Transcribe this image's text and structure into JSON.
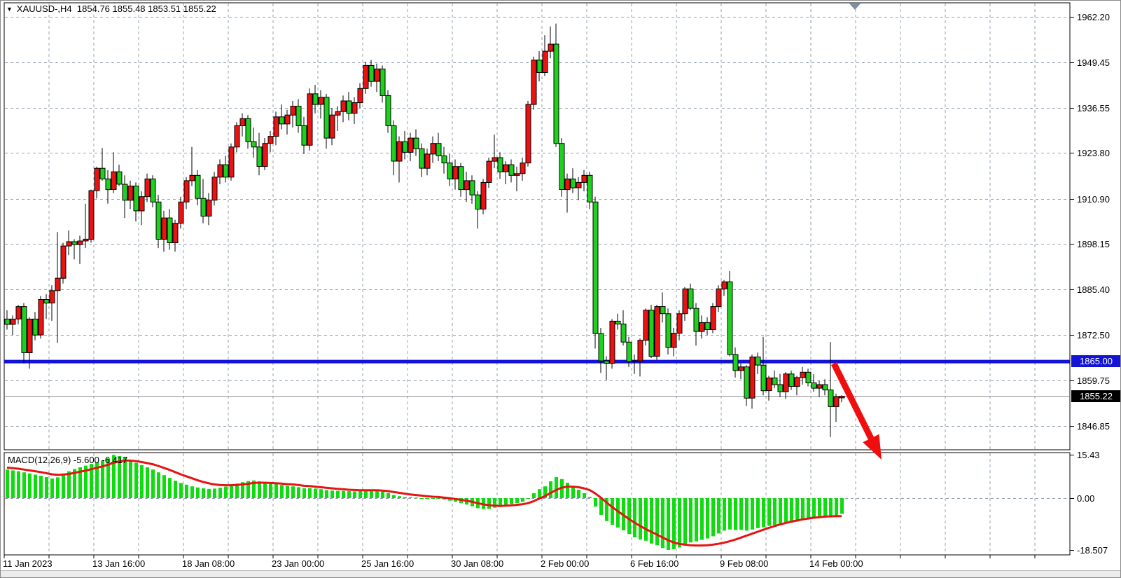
{
  "window": {
    "symbol_timeframe": "XAUUSD-,H4",
    "ohlc_readout": {
      "open": "1854.76",
      "high": "1855.48",
      "low": "1853.51",
      "close": "1855.22"
    }
  },
  "chart_data": {
    "type": "candlestick",
    "title": "XAUUSD-,H4",
    "symbol": "XAUUSD-",
    "timeframe": "H4",
    "legend_position": "none",
    "grid": true,
    "price_axis": {
      "ticks": [
        "1962.20",
        "1949.45",
        "1936.55",
        "1923.80",
        "1910.90",
        "1898.15",
        "1885.40",
        "1872.50",
        "1859.75",
        "1846.85"
      ],
      "ylim": [
        1843.0,
        1966.0
      ]
    },
    "time_axis": {
      "labels": [
        "11 Jan 2023",
        "13 Jan 16:00",
        "18 Jan 08:00",
        "23 Jan 00:00",
        "25 Jan 16:00",
        "30 Jan 08:00",
        "2 Feb 00:00",
        "6 Feb 16:00",
        "9 Feb 08:00",
        "14 Feb 00:00"
      ]
    },
    "bull_color_note": "bullish candles are red, bearish candles are green (inverted scheme)",
    "candles_ohlc": [
      [
        1877.0,
        1879.5,
        1874.0,
        1875.5
      ],
      [
        1875.5,
        1878.0,
        1872.5,
        1877.0
      ],
      [
        1877.0,
        1881.0,
        1875.5,
        1880.5
      ],
      [
        1880.5,
        1881.5,
        1864.5,
        1867.5
      ],
      [
        1867.5,
        1877.5,
        1863.0,
        1877.0
      ],
      [
        1877.0,
        1879.0,
        1871.0,
        1872.5
      ],
      [
        1872.5,
        1883.5,
        1871.5,
        1882.5
      ],
      [
        1882.5,
        1884.0,
        1877.0,
        1881.5
      ],
      [
        1881.5,
        1886.5,
        1876.5,
        1885.0
      ],
      [
        1885.0,
        1901.5,
        1870.3,
        1888.5
      ],
      [
        1888.5,
        1898.5,
        1887.0,
        1897.6
      ],
      [
        1897.6,
        1902.0,
        1895.0,
        1898.8
      ],
      [
        1898.8,
        1899.5,
        1893.8,
        1898.0
      ],
      [
        1898.0,
        1900.5,
        1892.5,
        1899.0
      ],
      [
        1899.0,
        1909.5,
        1897.0,
        1899.5
      ],
      [
        1899.5,
        1913.5,
        1898.5,
        1913.2
      ],
      [
        1913.2,
        1920.0,
        1911.0,
        1919.5
      ],
      [
        1919.5,
        1925.2,
        1916.0,
        1916.5
      ],
      [
        1916.5,
        1919.0,
        1909.5,
        1913.5
      ],
      [
        1913.5,
        1924.0,
        1912.5,
        1918.5
      ],
      [
        1918.5,
        1920.5,
        1914.5,
        1915.0
      ],
      [
        1915.0,
        1917.5,
        1905.5,
        1910.5
      ],
      [
        1910.5,
        1916.0,
        1908.0,
        1914.5
      ],
      [
        1914.5,
        1915.5,
        1904.5,
        1907.5
      ],
      [
        1907.5,
        1913.0,
        1903.5,
        1911.5
      ],
      [
        1911.5,
        1918.0,
        1910.0,
        1916.5
      ],
      [
        1916.5,
        1917.5,
        1908.5,
        1910.0
      ],
      [
        1910.0,
        1912.0,
        1897.0,
        1899.5
      ],
      [
        1899.5,
        1907.5,
        1896.0,
        1905.5
      ],
      [
        1905.5,
        1908.0,
        1896.5,
        1898.5
      ],
      [
        1898.5,
        1905.0,
        1896.0,
        1904.0
      ],
      [
        1904.0,
        1911.5,
        1902.5,
        1910.0
      ],
      [
        1910.0,
        1917.0,
        1908.0,
        1916.0
      ],
      [
        1916.0,
        1925.5,
        1914.5,
        1917.5
      ],
      [
        1917.5,
        1919.0,
        1909.0,
        1911.0
      ],
      [
        1911.0,
        1916.5,
        1904.0,
        1906.0
      ],
      [
        1906.0,
        1912.5,
        1903.5,
        1910.5
      ],
      [
        1910.5,
        1918.5,
        1909.0,
        1917.0
      ],
      [
        1917.0,
        1922.0,
        1915.0,
        1920.5
      ],
      [
        1920.5,
        1923.0,
        1915.5,
        1917.0
      ],
      [
        1917.0,
        1926.5,
        1916.0,
        1925.5
      ],
      [
        1925.5,
        1932.5,
        1924.0,
        1931.5
      ],
      [
        1931.5,
        1935.0,
        1928.5,
        1933.5
      ],
      [
        1933.5,
        1934.5,
        1925.0,
        1927.0
      ],
      [
        1927.0,
        1931.0,
        1922.5,
        1925.5
      ],
      [
        1925.5,
        1929.5,
        1917.5,
        1920.0
      ],
      [
        1920.0,
        1928.0,
        1919.0,
        1926.5
      ],
      [
        1926.5,
        1930.0,
        1924.0,
        1928.5
      ],
      [
        1928.5,
        1935.5,
        1926.0,
        1934.0
      ],
      [
        1934.0,
        1937.5,
        1930.5,
        1932.0
      ],
      [
        1932.0,
        1936.0,
        1929.0,
        1934.5
      ],
      [
        1934.5,
        1938.5,
        1931.0,
        1937.0
      ],
      [
        1937.0,
        1939.0,
        1929.5,
        1931.5
      ],
      [
        1931.5,
        1934.0,
        1923.5,
        1926.0
      ],
      [
        1926.0,
        1942.0,
        1924.5,
        1940.5
      ],
      [
        1940.5,
        1943.0,
        1935.0,
        1937.5
      ],
      [
        1937.5,
        1941.5,
        1933.5,
        1939.5
      ],
      [
        1939.5,
        1940.5,
        1925.0,
        1928.0
      ],
      [
        1928.0,
        1936.5,
        1926.0,
        1934.5
      ],
      [
        1934.5,
        1937.0,
        1930.0,
        1935.5
      ],
      [
        1935.5,
        1940.0,
        1932.5,
        1938.5
      ],
      [
        1938.5,
        1941.0,
        1933.0,
        1935.0
      ],
      [
        1935.0,
        1939.5,
        1932.0,
        1938.0
      ],
      [
        1938.0,
        1943.5,
        1936.5,
        1942.0
      ],
      [
        1942.0,
        1949.5,
        1940.5,
        1948.5
      ],
      [
        1948.5,
        1950.0,
        1942.5,
        1944.0
      ],
      [
        1944.0,
        1949.0,
        1941.0,
        1947.5
      ],
      [
        1947.5,
        1948.5,
        1938.0,
        1940.0
      ],
      [
        1940.0,
        1941.5,
        1929.5,
        1931.5
      ],
      [
        1931.5,
        1933.0,
        1917.5,
        1921.5
      ],
      [
        1921.5,
        1928.5,
        1915.5,
        1927.0
      ],
      [
        1927.0,
        1930.0,
        1922.0,
        1924.0
      ],
      [
        1924.0,
        1929.5,
        1921.5,
        1928.0
      ],
      [
        1928.0,
        1930.5,
        1923.0,
        1925.0
      ],
      [
        1925.0,
        1926.5,
        1917.0,
        1919.5
      ],
      [
        1919.5,
        1925.0,
        1917.5,
        1923.5
      ],
      [
        1923.5,
        1928.5,
        1921.0,
        1926.5
      ],
      [
        1926.5,
        1929.5,
        1921.5,
        1923.0
      ],
      [
        1923.0,
        1925.5,
        1918.0,
        1921.0
      ],
      [
        1921.0,
        1923.5,
        1914.5,
        1916.5
      ],
      [
        1916.5,
        1922.0,
        1913.5,
        1920.0
      ],
      [
        1920.0,
        1921.0,
        1911.5,
        1913.5
      ],
      [
        1913.5,
        1918.5,
        1910.0,
        1916.0
      ],
      [
        1916.0,
        1917.5,
        1909.5,
        1912.0
      ],
      [
        1912.0,
        1913.0,
        1902.5,
        1908.0
      ],
      [
        1908.0,
        1916.5,
        1906.5,
        1915.5
      ],
      [
        1915.5,
        1922.5,
        1914.0,
        1921.5
      ],
      [
        1921.5,
        1929.0,
        1919.5,
        1922.5
      ],
      [
        1922.5,
        1924.0,
        1916.5,
        1918.5
      ],
      [
        1918.5,
        1921.5,
        1915.0,
        1920.5
      ],
      [
        1920.5,
        1922.0,
        1915.5,
        1917.5
      ],
      [
        1917.5,
        1920.0,
        1913.0,
        1918.0
      ],
      [
        1918.0,
        1922.5,
        1916.0,
        1921.0
      ],
      [
        1921.0,
        1938.5,
        1920.0,
        1937.5
      ],
      [
        1937.5,
        1951.0,
        1936.0,
        1950.0
      ],
      [
        1950.0,
        1952.5,
        1944.0,
        1946.5
      ],
      [
        1946.5,
        1957.0,
        1945.5,
        1952.5
      ],
      [
        1952.5,
        1959.5,
        1950.5,
        1954.5
      ],
      [
        1954.5,
        1960.3,
        1925.5,
        1926.5
      ],
      [
        1926.5,
        1928.0,
        1911.5,
        1913.5
      ],
      [
        1913.5,
        1918.0,
        1907.0,
        1916.5
      ],
      [
        1916.5,
        1919.5,
        1912.5,
        1914.0
      ],
      [
        1914.0,
        1917.0,
        1910.5,
        1915.5
      ],
      [
        1915.5,
        1919.0,
        1913.0,
        1917.5
      ],
      [
        1917.5,
        1918.5,
        1908.0,
        1910.0
      ],
      [
        1910.0,
        1911.5,
        1868.7,
        1872.9
      ],
      [
        1872.9,
        1874.5,
        1861.8,
        1865.2
      ],
      [
        1865.2,
        1866.5,
        1859.8,
        1864.5
      ],
      [
        1864.5,
        1877.0,
        1863.0,
        1876.4
      ],
      [
        1876.4,
        1878.5,
        1874.0,
        1875.6
      ],
      [
        1875.6,
        1879.5,
        1869.5,
        1870.5
      ],
      [
        1870.5,
        1872.0,
        1863.5,
        1865.0
      ],
      [
        1865.0,
        1867.0,
        1861.5,
        1865.2
      ],
      [
        1865.2,
        1871.5,
        1860.8,
        1871.0
      ],
      [
        1871.0,
        1880.0,
        1869.5,
        1879.5
      ],
      [
        1879.5,
        1881.0,
        1866.0,
        1866.5
      ],
      [
        1866.5,
        1881.0,
        1865.5,
        1880.5
      ],
      [
        1880.5,
        1884.5,
        1876.0,
        1878.5
      ],
      [
        1878.5,
        1880.0,
        1867.0,
        1869.0
      ],
      [
        1869.0,
        1874.5,
        1866.5,
        1873.0
      ],
      [
        1873.0,
        1879.5,
        1871.0,
        1878.5
      ],
      [
        1878.5,
        1886.0,
        1876.5,
        1885.5
      ],
      [
        1885.5,
        1887.0,
        1879.5,
        1880.0
      ],
      [
        1880.0,
        1881.5,
        1869.5,
        1873.5
      ],
      [
        1873.5,
        1878.0,
        1871.5,
        1876.0
      ],
      [
        1876.0,
        1877.5,
        1872.5,
        1874.0
      ],
      [
        1874.0,
        1881.5,
        1873.0,
        1880.5
      ],
      [
        1880.5,
        1886.5,
        1879.0,
        1885.5
      ],
      [
        1885.5,
        1888.0,
        1883.5,
        1887.5
      ],
      [
        1887.5,
        1890.5,
        1866.5,
        1867.0
      ],
      [
        1867.0,
        1869.0,
        1860.5,
        1862.5
      ],
      [
        1862.5,
        1864.5,
        1860.0,
        1863.5
      ],
      [
        1863.5,
        1864.0,
        1852.5,
        1854.7
      ],
      [
        1854.7,
        1867.0,
        1851.7,
        1866.3
      ],
      [
        1866.3,
        1867.5,
        1861.5,
        1864.0
      ],
      [
        1864.0,
        1872.0,
        1855.5,
        1856.8
      ],
      [
        1856.8,
        1861.0,
        1854.0,
        1860.4
      ],
      [
        1860.4,
        1862.5,
        1857.5,
        1858.5
      ],
      [
        1858.5,
        1861.5,
        1855.0,
        1856.5
      ],
      [
        1856.5,
        1862.0,
        1854.5,
        1861.5
      ],
      [
        1861.5,
        1862.5,
        1857.0,
        1858.0
      ],
      [
        1858.0,
        1861.0,
        1855.5,
        1860.5
      ],
      [
        1860.5,
        1863.5,
        1858.5,
        1862.0
      ],
      [
        1862.0,
        1863.0,
        1858.0,
        1859.0
      ],
      [
        1859.0,
        1861.5,
        1856.5,
        1857.5
      ],
      [
        1857.5,
        1859.5,
        1855.0,
        1858.5
      ],
      [
        1858.5,
        1860.0,
        1855.5,
        1857.0
      ],
      [
        1857.0,
        1870.5,
        1843.7,
        1852.3
      ],
      [
        1852.3,
        1856.0,
        1848.0,
        1855.1
      ],
      [
        1854.76,
        1855.48,
        1853.51,
        1855.22
      ]
    ],
    "overlays": {
      "resistance_line": {
        "price": 1865.0,
        "label": "1865.00",
        "color": "#1313d6"
      },
      "current_price": {
        "price": 1855.22,
        "label": "1855.22",
        "bg": "#000000"
      },
      "trend_arrow": {
        "direction": "down-right",
        "color": "#f00d0d"
      },
      "scroll_marker": {
        "shape": "triangle-down",
        "color": "#7f8fa0"
      }
    },
    "macd": {
      "name_label": "MACD(12,26,9)",
      "values_label": "-5.600 -6.417",
      "axis_ticks": [
        "15.43",
        "0.00",
        "-18.507"
      ],
      "histogram_color": "#0ddd0d",
      "signal_color": "#e81212",
      "main": [
        10.2,
        9.9,
        9.6,
        9.2,
        8.8,
        8.4,
        8.0,
        7.5,
        7.0,
        7.4,
        8.8,
        9.6,
        10.4,
        11.0,
        11.6,
        12.2,
        12.8,
        13.4,
        14.2,
        15.43,
        15.0,
        14.4,
        13.6,
        12.6,
        11.8,
        11.0,
        10.2,
        9.2,
        8.2,
        7.2,
        6.2,
        5.4,
        4.8,
        4.2,
        3.8,
        3.5,
        3.3,
        3.4,
        3.7,
        4.1,
        4.6,
        5.2,
        5.7,
        6.1,
        6.3,
        6.0,
        5.6,
        5.2,
        5.0,
        4.7,
        4.4,
        4.2,
        3.9,
        3.5,
        3.6,
        3.4,
        3.2,
        2.9,
        2.7,
        2.6,
        2.6,
        2.5,
        2.4,
        2.5,
        2.8,
        2.7,
        2.6,
        2.3,
        1.8,
        1.1,
        0.7,
        0.4,
        0.3,
        0.2,
        0.0,
        -0.1,
        -0.1,
        -0.2,
        -0.5,
        -0.9,
        -1.3,
        -1.8,
        -2.3,
        -2.9,
        -3.6,
        -3.9,
        -3.8,
        -3.4,
        -3.0,
        -2.5,
        -2.1,
        -1.8,
        -1.3,
        -0.2,
        1.8,
        3.2,
        4.2,
        6.0,
        7.5,
        6.8,
        5.5,
        4.2,
        3.0,
        1.8,
        0.4,
        -3.0,
        -6.0,
        -8.2,
        -9.5,
        -10.5,
        -11.5,
        -12.8,
        -14.0,
        -14.8,
        -15.2,
        -16.2,
        -16.8,
        -17.8,
        -18.507,
        -18.2,
        -17.6,
        -16.6,
        -15.8,
        -15.4,
        -14.9,
        -14.4,
        -13.6,
        -12.6,
        -11.6,
        -11.2,
        -11.4,
        -11.3,
        -11.6,
        -11.2,
        -10.7,
        -10.4,
        -9.9,
        -9.6,
        -9.4,
        -9.0,
        -8.7,
        -8.3,
        -7.9,
        -7.6,
        -7.3,
        -7.0,
        -6.7,
        -6.6,
        -6.1,
        -5.6
      ],
      "signal": [
        10.9,
        10.7,
        10.5,
        10.2,
        9.9,
        9.6,
        9.3,
        8.9,
        8.5,
        8.3,
        8.4,
        8.6,
        9.0,
        9.4,
        9.8,
        10.3,
        10.8,
        11.3,
        11.9,
        12.6,
        13.1,
        13.4,
        13.4,
        13.2,
        12.9,
        12.5,
        12.1,
        11.5,
        10.8,
        10.1,
        9.3,
        8.5,
        7.8,
        7.1,
        6.4,
        5.8,
        5.3,
        4.9,
        4.7,
        4.6,
        4.6,
        4.7,
        4.9,
        5.1,
        5.4,
        5.5,
        5.5,
        5.4,
        5.3,
        5.2,
        5.0,
        4.9,
        4.7,
        4.4,
        4.3,
        4.1,
        3.9,
        3.7,
        3.5,
        3.3,
        3.2,
        3.0,
        2.9,
        2.8,
        2.8,
        2.8,
        2.8,
        2.7,
        2.5,
        2.2,
        1.9,
        1.6,
        1.3,
        1.1,
        0.9,
        0.7,
        0.5,
        0.4,
        0.2,
        0.0,
        -0.3,
        -0.6,
        -0.9,
        -1.3,
        -1.8,
        -2.2,
        -2.5,
        -2.7,
        -2.8,
        -2.7,
        -2.6,
        -2.4,
        -2.2,
        -1.8,
        -1.1,
        -0.2,
        0.7,
        1.8,
        2.9,
        3.7,
        4.1,
        4.1,
        3.9,
        3.5,
        2.9,
        1.7,
        0.2,
        -1.5,
        -3.1,
        -4.6,
        -6.0,
        -7.4,
        -8.7,
        -9.9,
        -11.0,
        -12.0,
        -13.0,
        -14.0,
        -15.0,
        -15.8,
        -16.3,
        -16.6,
        -16.8,
        -16.9,
        -16.9,
        -16.8,
        -16.6,
        -16.3,
        -15.9,
        -15.4,
        -14.8,
        -14.1,
        -13.4,
        -12.7,
        -12.0,
        -11.3,
        -10.6,
        -10.0,
        -9.4,
        -8.9,
        -8.4,
        -8.0,
        -7.6,
        -7.3,
        -7.0,
        -6.8,
        -6.6,
        -6.5,
        -6.45,
        -6.417
      ]
    },
    "colors": {
      "bull_fill": "#ed1212",
      "bear_fill": "#1fd11f",
      "wick": "#000000",
      "grid": "#92a0b2",
      "panel_border": "#000000",
      "current_price_line": "#8a8a8a"
    }
  }
}
